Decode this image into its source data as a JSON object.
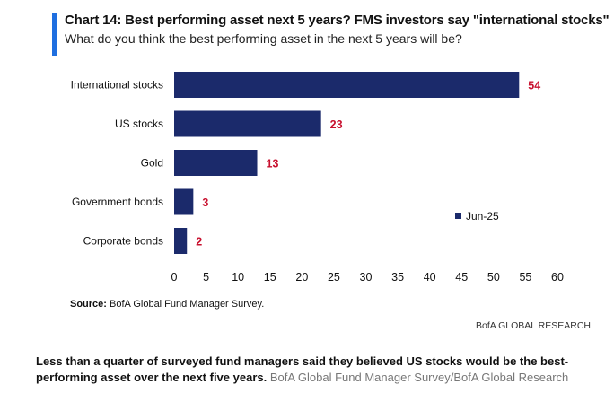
{
  "header": {
    "title": "Chart 14: Best performing asset next 5 years? FMS investors say \"international stocks\"",
    "subtitle": "What do you think the best performing asset in the next 5 years will be?"
  },
  "footer": {
    "source_label": "Source:",
    "source_text": "BofA Global Fund Manager Survey.",
    "brand": "BofA GLOBAL RESEARCH"
  },
  "caption": {
    "text": "Less than a quarter of surveyed fund managers said they believed US stocks would be the best-performing asset over the next five years.",
    "credit": "BofA Global Fund Manager Survey/BofA Global Research"
  },
  "colors": {
    "bar": "#1b2a6b",
    "value_label": "#c8102e",
    "accent": "#1f6fe0"
  },
  "chart_data": {
    "type": "bar",
    "orientation": "horizontal",
    "categories": [
      "International stocks",
      "US stocks",
      "Gold",
      "Government bonds",
      "Corporate bonds"
    ],
    "series": [
      {
        "name": "Jun-25",
        "values": [
          54,
          23,
          13,
          3,
          2
        ]
      }
    ],
    "xlim": [
      0,
      60
    ],
    "xticks": [
      0,
      5,
      10,
      15,
      20,
      25,
      30,
      35,
      40,
      45,
      50,
      55,
      60
    ],
    "legend_position": "right-middle",
    "grid": false
  }
}
